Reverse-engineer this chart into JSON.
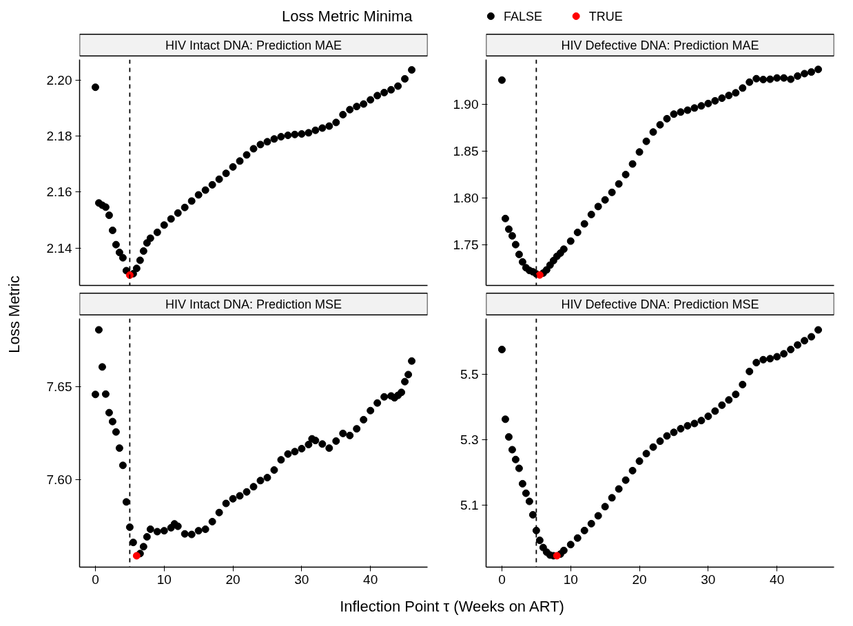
{
  "chart_data": [
    {
      "type": "scatter",
      "title": "HIV Intact DNA: Prediction MAE",
      "xlabel": "Inflection Point τ (Weeks on ART)",
      "ylabel": "Loss Metric",
      "legend_title": "Loss Metric Minima",
      "legend": "top",
      "marker": "circle",
      "tick_labels": "y",
      "xlim": [
        -2.3,
        48.3
      ],
      "ylim": [
        2.1266,
        2.2074
      ],
      "xticks": [
        0,
        10,
        20,
        30,
        40
      ],
      "yticks": [
        2.14,
        2.16,
        2.18,
        {
          "value": 2.2,
          "label": "2.20"
        }
      ],
      "ref_lines": [
        {
          "axis": "x",
          "value": 5,
          "label": null,
          "color": "#000000",
          "line_style": "dashed"
        }
      ],
      "series": [
        {
          "name": "FALSE",
          "color": "#000000",
          "x": [
            0,
            0.5,
            1,
            1.5,
            2,
            2.5,
            3,
            3.5,
            4,
            4.5,
            5.5,
            6,
            6.5,
            7,
            7.5,
            8,
            9,
            10,
            11,
            12,
            13,
            14,
            15,
            16,
            17,
            18,
            19,
            20,
            21,
            22,
            23,
            24,
            25,
            26,
            27,
            28,
            29,
            30,
            31,
            32,
            33,
            34,
            35,
            36,
            37,
            38,
            39,
            40,
            41,
            42,
            43,
            44,
            45,
            46
          ],
          "values": [
            2.1975,
            2.1561,
            2.1553,
            2.1546,
            2.1517,
            2.1463,
            2.1412,
            2.1384,
            2.1365,
            2.1319,
            2.1308,
            2.1327,
            2.1356,
            2.1389,
            2.1418,
            2.1435,
            2.1456,
            2.1482,
            2.1504,
            2.1525,
            2.1545,
            2.1568,
            2.159,
            2.1607,
            2.1626,
            2.1646,
            2.1667,
            2.169,
            2.1711,
            2.1733,
            2.1755,
            2.177,
            2.178,
            2.179,
            2.1798,
            2.1803,
            2.1806,
            2.1808,
            2.1812,
            2.1821,
            2.1829,
            2.1836,
            2.1849,
            2.1877,
            2.1895,
            2.1906,
            2.1915,
            2.193,
            2.1945,
            2.1956,
            2.1966,
            2.1979,
            2.2005,
            2.2037
          ]
        },
        {
          "name": "TRUE",
          "color": "#ff0000",
          "x": [
            5
          ],
          "values": [
            2.1303
          ]
        }
      ]
    },
    {
      "type": "scatter",
      "title": "HIV Defective DNA: Prediction MAE",
      "marker": "circle",
      "tick_labels": "y",
      "xlim": [
        -2.3,
        48.3
      ],
      "ylim": [
        1.707,
        1.948
      ],
      "xticks": [
        0,
        10,
        20,
        30,
        40
      ],
      "yticks": [
        1.75,
        {
          "value": 1.8,
          "label": "1.80"
        },
        1.85,
        {
          "value": 1.9,
          "label": "1.90"
        }
      ],
      "ref_lines": [
        {
          "axis": "x",
          "value": 5,
          "label": null,
          "color": "#000000",
          "line_style": "dashed"
        }
      ],
      "series": [
        {
          "color": "#000000",
          "x": [
            0,
            0.5,
            1,
            1.5,
            2,
            2.5,
            3,
            3.5,
            4,
            4.5,
            5,
            6,
            6.5,
            7,
            7.5,
            8,
            8.5,
            9,
            10,
            11,
            12,
            13,
            14,
            15,
            16,
            17,
            18,
            19,
            20,
            21,
            22,
            23,
            24,
            25,
            26,
            27,
            28,
            29,
            30,
            31,
            32,
            33,
            34,
            35,
            36,
            37,
            38,
            39,
            40,
            41,
            42,
            43,
            44,
            45,
            46
          ],
          "values": [
            1.9261,
            1.7784,
            1.767,
            1.7599,
            1.7506,
            1.7401,
            1.7321,
            1.7259,
            1.723,
            1.7216,
            1.7193,
            1.7202,
            1.7236,
            1.7287,
            1.7335,
            1.7381,
            1.7415,
            1.7457,
            1.7543,
            1.7636,
            1.7727,
            1.7827,
            1.7912,
            1.7983,
            1.8063,
            1.8153,
            1.8253,
            1.8366,
            1.8494,
            1.8608,
            1.8707,
            1.8784,
            1.8849,
            1.8898,
            1.892,
            1.894,
            1.8963,
            1.8986,
            1.9011,
            1.904,
            1.9068,
            1.9097,
            1.9125,
            1.9176,
            1.9239,
            1.9276,
            1.9267,
            1.927,
            1.9284,
            1.9284,
            1.927,
            1.9304,
            1.933,
            1.9347,
            1.9375
          ]
        },
        {
          "color": "#ff0000",
          "x": [
            5.5
          ],
          "values": [
            1.7182
          ]
        }
      ]
    },
    {
      "type": "scatter",
      "title": "HIV Intact DNA: Prediction MSE",
      "marker": "circle",
      "xlim": [
        -2.3,
        48.3
      ],
      "ylim": [
        7.5529,
        7.6868
      ],
      "xticks": [
        0,
        10,
        20,
        30,
        40
      ],
      "yticks": [
        {
          "value": 7.6,
          "label": "7.60"
        },
        7.65
      ],
      "ref_lines": [
        {
          "axis": "x",
          "value": 5,
          "label": null,
          "color": "#000000",
          "line_style": "dashed"
        }
      ],
      "series": [
        {
          "color": "#000000",
          "x": [
            0,
            0.5,
            1,
            1.5,
            2,
            2.5,
            3,
            3.5,
            4,
            4.5,
            5,
            5.5,
            6.5,
            7,
            7.5,
            8,
            9,
            10,
            11,
            11.5,
            12,
            13,
            14,
            15,
            16,
            17,
            18,
            19,
            20,
            21,
            22,
            23,
            24,
            25,
            26,
            27,
            28,
            29,
            30,
            31,
            31.5,
            32,
            33,
            34,
            35,
            36,
            37,
            38,
            39,
            40,
            41,
            42,
            43,
            43.5,
            44,
            44.5,
            45,
            45.5,
            46
          ],
          "values": [
            7.6459,
            7.6807,
            7.6607,
            7.6461,
            7.6361,
            7.6313,
            7.6257,
            7.617,
            7.6077,
            7.588,
            7.5744,
            7.5662,
            7.5602,
            7.5639,
            7.5692,
            7.5733,
            7.572,
            7.5725,
            7.5741,
            7.5762,
            7.5749,
            7.5708,
            7.5705,
            7.5725,
            7.5733,
            7.5774,
            7.5823,
            7.5872,
            7.5897,
            7.5913,
            7.5934,
            7.5962,
            7.5995,
            7.6011,
            7.6052,
            7.6107,
            7.6138,
            7.6151,
            7.6167,
            7.6189,
            7.622,
            7.6211,
            7.6192,
            7.617,
            7.6208,
            7.6249,
            7.6238,
            7.6274,
            7.6323,
            7.6372,
            7.6413,
            7.6446,
            7.6451,
            7.6441,
            7.6454,
            7.647,
            7.6528,
            7.6566,
            7.6639
          ]
        },
        {
          "color": "#ff0000",
          "x": [
            6
          ],
          "values": [
            7.559
          ]
        }
      ]
    },
    {
      "type": "scatter",
      "title": "HIV Defective DNA: Prediction MSE",
      "marker": "circle",
      "xlim": [
        -2.3,
        48.3
      ],
      "ylim": [
        4.9112,
        5.6708
      ],
      "xticks": [
        0,
        10,
        20,
        30,
        40
      ],
      "yticks": [
        5.1,
        5.3,
        5.5
      ],
      "ref_lines": [
        {
          "axis": "x",
          "value": 5,
          "label": null,
          "color": "#000000",
          "line_style": "dashed"
        }
      ],
      "series": [
        {
          "color": "#000000",
          "x": [
            0,
            0.5,
            1,
            1.5,
            2,
            2.5,
            3,
            3.5,
            4,
            4.5,
            5,
            5.5,
            6,
            6.5,
            7,
            7.5,
            8.5,
            9,
            10,
            11,
            12,
            13,
            14,
            15,
            16,
            17,
            18,
            19,
            20,
            21,
            22,
            23,
            24,
            25,
            26,
            27,
            28,
            29,
            30,
            31,
            32,
            33,
            34,
            35,
            36,
            37,
            38,
            39,
            40,
            41,
            42,
            43,
            44,
            45,
            46
          ],
          "values": [
            5.576,
            5.363,
            5.309,
            5.27,
            5.24,
            5.213,
            5.166,
            5.137,
            5.112,
            5.071,
            5.023,
            4.993,
            4.971,
            4.957,
            4.948,
            4.946,
            4.951,
            4.962,
            4.98,
            5.0,
            5.023,
            5.044,
            5.068,
            5.096,
            5.123,
            5.15,
            5.177,
            5.206,
            5.235,
            5.258,
            5.278,
            5.296,
            5.312,
            5.323,
            5.334,
            5.343,
            5.35,
            5.359,
            5.372,
            5.388,
            5.406,
            5.422,
            5.439,
            5.469,
            5.509,
            5.536,
            5.545,
            5.548,
            5.554,
            5.563,
            5.576,
            5.59,
            5.603,
            5.615,
            5.636
          ]
        },
        {
          "color": "#ff0000",
          "x": [
            8
          ],
          "values": [
            4.946
          ]
        }
      ]
    }
  ]
}
